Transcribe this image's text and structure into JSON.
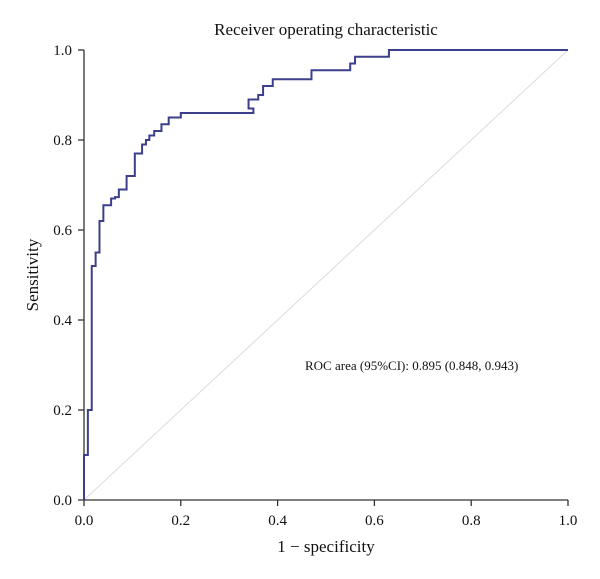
{
  "chart_data": {
    "type": "line",
    "title": "Receiver operating characteristic",
    "xlabel": "1 − specificity",
    "ylabel": "Sensitivity",
    "xlim": [
      0,
      1
    ],
    "ylim": [
      0,
      1
    ],
    "xticks": [
      "0.0",
      "0.2",
      "0.4",
      "0.6",
      "0.8",
      "1.0"
    ],
    "yticks": [
      "0.0",
      "0.2",
      "0.4",
      "0.6",
      "0.8",
      "1.0"
    ],
    "grid": false,
    "legend": "none",
    "annotation": "ROC area (95%CI): 0.895 (0.848, 0.943)",
    "colors": {
      "roc": "#3b3f8c",
      "reference": "#dcdcdc",
      "axis": "#333333"
    },
    "series": [
      {
        "type": "step",
        "x": [
          0.0,
          0.0,
          0.008,
          0.008,
          0.016,
          0.016,
          0.024,
          0.024,
          0.032,
          0.032,
          0.04,
          0.04,
          0.056,
          0.056,
          0.064,
          0.064,
          0.072,
          0.072,
          0.088,
          0.088,
          0.105,
          0.105,
          0.12,
          0.12,
          0.128,
          0.128,
          0.135,
          0.135,
          0.145,
          0.145,
          0.16,
          0.16,
          0.175,
          0.175,
          0.2,
          0.2,
          0.35,
          0.35,
          0.34,
          0.34,
          0.36,
          0.36,
          0.37,
          0.37,
          0.39,
          0.39,
          0.47,
          0.47,
          0.55,
          0.55,
          0.56,
          0.56,
          0.63,
          0.63,
          0.67,
          0.67,
          1.0
        ],
        "y": [
          0.0,
          0.1,
          0.1,
          0.2,
          0.2,
          0.52,
          0.52,
          0.55,
          0.55,
          0.62,
          0.62,
          0.655,
          0.655,
          0.67,
          0.67,
          0.673,
          0.673,
          0.69,
          0.69,
          0.72,
          0.72,
          0.77,
          0.77,
          0.79,
          0.79,
          0.8,
          0.8,
          0.81,
          0.81,
          0.82,
          0.82,
          0.835,
          0.835,
          0.85,
          0.85,
          0.86,
          0.86,
          0.87,
          0.87,
          0.89,
          0.89,
          0.9,
          0.9,
          0.92,
          0.92,
          0.935,
          0.935,
          0.955,
          0.955,
          0.97,
          0.97,
          0.985,
          0.985,
          1.0,
          1.0,
          1.0,
          1.0
        ]
      },
      {
        "type": "reference",
        "x": [
          0,
          1
        ],
        "y": [
          0,
          1
        ]
      }
    ]
  }
}
